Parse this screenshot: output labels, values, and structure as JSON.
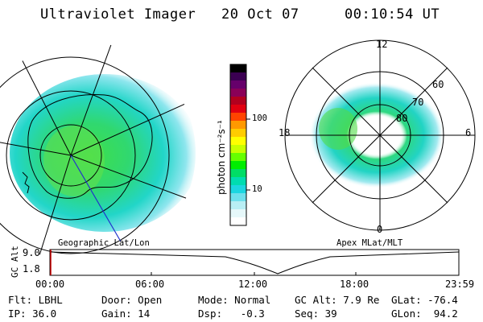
{
  "header": {
    "instrument": "Ultraviolet Imager",
    "date": "20 Oct 07",
    "time": "00:10:54 UT"
  },
  "left_panel": {
    "label": "Geographic Lat/Lon"
  },
  "right_panel": {
    "label": "Apex MLat/MLT",
    "lat_labels": [
      "80",
      "70",
      "60"
    ],
    "mlt_labels": [
      "12",
      "18",
      "6",
      "0"
    ]
  },
  "colorbar": {
    "unit_label": "photon cm⁻²s⁻¹",
    "ticks": [
      "100",
      "10"
    ],
    "colors": [
      "#000000",
      "#3b0052",
      "#66006b",
      "#8a0058",
      "#b2001e",
      "#e10010",
      "#ff4400",
      "#ff9900",
      "#ffcc00",
      "#ffff00",
      "#c8ff00",
      "#66ff00",
      "#00ee00",
      "#00dd66",
      "#00dcb0",
      "#1cd6e0",
      "#6ee0ec",
      "#b8eef4",
      "#e6f8fa",
      "#ffffff"
    ]
  },
  "timeline": {
    "y_label": "GC Alt",
    "y_ticks": [
      "9.0",
      "1.8"
    ],
    "x_ticks": [
      "00:00",
      "06:00",
      "12:00",
      "18:00",
      "23:59"
    ],
    "marker_color": "#cc0000"
  },
  "info": {
    "row1": [
      {
        "key": "Flt:",
        "value": "LBHL"
      },
      {
        "key": "Door:",
        "value": "Open"
      },
      {
        "key": "Mode:",
        "value": "Normal"
      },
      {
        "key": "GC Alt:",
        "value": "7.9 Re"
      },
      {
        "key": "GLat:",
        "value": "-76.4"
      }
    ],
    "row2": [
      {
        "key": "IP:",
        "value": "36.0"
      },
      {
        "key": "Gain:",
        "value": "14"
      },
      {
        "key": "Dsp:",
        "value": "-0.3"
      },
      {
        "key": "Seq:",
        "value": "39"
      },
      {
        "key": "GLon:",
        "value": "94.2"
      }
    ]
  }
}
